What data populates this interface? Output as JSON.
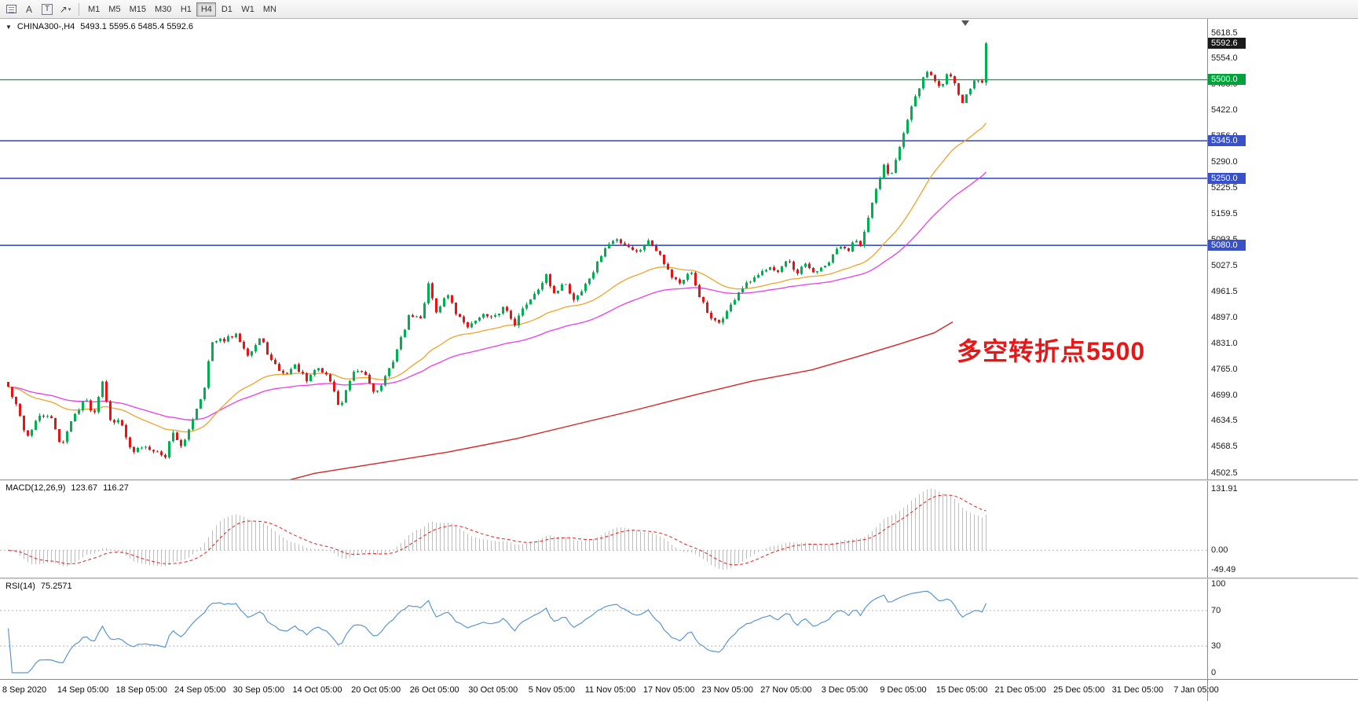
{
  "toolbar": {
    "tools": [
      {
        "label": "A"
      },
      {
        "label": "T"
      },
      {
        "label": "↗"
      }
    ],
    "caret": "▾",
    "timeframes": [
      {
        "label": "M1"
      },
      {
        "label": "M5"
      },
      {
        "label": "M15"
      },
      {
        "label": "M30"
      },
      {
        "label": "H1"
      },
      {
        "label": "H4",
        "active": true
      },
      {
        "label": "D1"
      },
      {
        "label": "W1"
      },
      {
        "label": "MN"
      }
    ]
  },
  "header": {
    "marker": "▼",
    "symbol": "CHINA300-,H4",
    "ohlc": "5493.1 5595.6 5485.4 5592.6"
  },
  "annotation": "多空转折点5500",
  "chart_data": {
    "type": "candlestick",
    "title": "CHINA300-,H4",
    "timeframe": "H4",
    "ohlc_display": {
      "open": "5493.1",
      "high": "5595.6",
      "low": "5485.4",
      "close": "5592.6"
    },
    "last_candle": {
      "o": 5493.1,
      "h": 5595.6,
      "l": 5485.4,
      "c": 5592.6
    },
    "current_price": 5592.6,
    "price_axis": {
      "min": 4502.5,
      "max": 5618.5,
      "labels": [
        5618.5,
        5554.0,
        5488.0,
        5422.0,
        5356.0,
        5290.0,
        5225.5,
        5159.5,
        5093.5,
        5027.5,
        4961.5,
        4897.0,
        4831.0,
        4765.0,
        4699.0,
        4634.5,
        4568.5,
        4502.5
      ]
    },
    "levels": [
      {
        "price": 5500.0,
        "label": "5500.0",
        "color": "#00a239",
        "weight": 1.3,
        "type": "horizontal-line"
      },
      {
        "price": 5345.0,
        "label": "5345.0",
        "color": "#3850c8",
        "weight": 1.6,
        "type": "horizontal-line"
      },
      {
        "price": 5250.0,
        "label": "5250.0",
        "color": "#3850c8",
        "weight": 1.6,
        "type": "horizontal-line"
      },
      {
        "price": 5080.0,
        "label": "5080.0",
        "color": "#3850c8",
        "weight": 1.6,
        "type": "horizontal-line"
      }
    ],
    "time_labels": [
      "8 Sep 2020",
      "14 Sep 05:00",
      "18 Sep 05:00",
      "24 Sep 05:00",
      "30 Sep 05:00",
      "14 Oct 05:00",
      "20 Oct 05:00",
      "26 Oct 05:00",
      "30 Oct 05:00",
      "5 Nov 05:00",
      "11 Nov 05:00",
      "17 Nov 05:00",
      "23 Nov 05:00",
      "27 Nov 05:00",
      "3 Dec 05:00",
      "9 Dec 05:00",
      "15 Dec 05:00",
      "21 Dec 05:00",
      "25 Dec 05:00",
      "31 Dec 05:00",
      "7 Jan 05:00"
    ],
    "candle_count": 250,
    "price_path": [
      [
        0,
        4720
      ],
      [
        0.01,
        4662
      ],
      [
        0.019,
        4592
      ],
      [
        0.03,
        4642
      ],
      [
        0.042,
        4652
      ],
      [
        0.054,
        4572
      ],
      [
        0.066,
        4642
      ],
      [
        0.078,
        4692
      ],
      [
        0.088,
        4652
      ],
      [
        0.096,
        4742
      ],
      [
        0.106,
        4622
      ],
      [
        0.115,
        4642
      ],
      [
        0.126,
        4552
      ],
      [
        0.138,
        4572
      ],
      [
        0.15,
        4562
      ],
      [
        0.16,
        4540
      ],
      [
        0.168,
        4612
      ],
      [
        0.178,
        4562
      ],
      [
        0.19,
        4652
      ],
      [
        0.2,
        4712
      ],
      [
        0.208,
        4832
      ],
      [
        0.222,
        4842
      ],
      [
        0.234,
        4852
      ],
      [
        0.246,
        4802
      ],
      [
        0.258,
        4846
      ],
      [
        0.27,
        4782
      ],
      [
        0.282,
        4752
      ],
      [
        0.294,
        4776
      ],
      [
        0.306,
        4732
      ],
      [
        0.315,
        4772
      ],
      [
        0.328,
        4746
      ],
      [
        0.339,
        4666
      ],
      [
        0.352,
        4752
      ],
      [
        0.363,
        4762
      ],
      [
        0.376,
        4702
      ],
      [
        0.39,
        4766
      ],
      [
        0.402,
        4846
      ],
      [
        0.411,
        4906
      ],
      [
        0.422,
        4892
      ],
      [
        0.43,
        4988
      ],
      [
        0.438,
        4906
      ],
      [
        0.448,
        4962
      ],
      [
        0.459,
        4902
      ],
      [
        0.472,
        4872
      ],
      [
        0.483,
        4906
      ],
      [
        0.496,
        4892
      ],
      [
        0.507,
        4926
      ],
      [
        0.518,
        4882
      ],
      [
        0.528,
        4926
      ],
      [
        0.539,
        4962
      ],
      [
        0.55,
        5002
      ],
      [
        0.558,
        4952
      ],
      [
        0.568,
        4992
      ],
      [
        0.578,
        4942
      ],
      [
        0.587,
        4966
      ],
      [
        0.598,
        5012
      ],
      [
        0.61,
        5072
      ],
      [
        0.621,
        5096
      ],
      [
        0.632,
        5082
      ],
      [
        0.643,
        5062
      ],
      [
        0.654,
        5092
      ],
      [
        0.666,
        5062
      ],
      [
        0.677,
        5006
      ],
      [
        0.688,
        4982
      ],
      [
        0.698,
        5012
      ],
      [
        0.707,
        4952
      ],
      [
        0.718,
        4892
      ],
      [
        0.726,
        4882
      ],
      [
        0.738,
        4922
      ],
      [
        0.747,
        4962
      ],
      [
        0.758,
        4986
      ],
      [
        0.768,
        5002
      ],
      [
        0.778,
        5032
      ],
      [
        0.787,
        5012
      ],
      [
        0.797,
        5042
      ],
      [
        0.806,
        5002
      ],
      [
        0.814,
        5032
      ],
      [
        0.824,
        5012
      ],
      [
        0.834,
        5022
      ],
      [
        0.842,
        5046
      ],
      [
        0.85,
        5082
      ],
      [
        0.858,
        5062
      ],
      [
        0.866,
        5102
      ],
      [
        0.872,
        5082
      ],
      [
        0.88,
        5152
      ],
      [
        0.888,
        5222
      ],
      [
        0.896,
        5286
      ],
      [
        0.902,
        5252
      ],
      [
        0.91,
        5322
      ],
      [
        0.918,
        5386
      ],
      [
        0.925,
        5442
      ],
      [
        0.932,
        5476
      ],
      [
        0.939,
        5526
      ],
      [
        0.946,
        5502
      ],
      [
        0.954,
        5478
      ],
      [
        0.961,
        5522
      ],
      [
        0.968,
        5492
      ],
      [
        0.975,
        5442
      ],
      [
        0.982,
        5472
      ],
      [
        0.989,
        5502
      ],
      [
        0.995,
        5493
      ],
      [
        1,
        5592.6
      ]
    ],
    "ma_slow_path": [
      [
        0.18,
        4428
      ],
      [
        0.25,
        4460
      ],
      [
        0.314,
        4502
      ],
      [
        0.38,
        4528
      ],
      [
        0.45,
        4556
      ],
      [
        0.52,
        4590
      ],
      [
        0.58,
        4626
      ],
      [
        0.64,
        4662
      ],
      [
        0.7,
        4700
      ],
      [
        0.76,
        4736
      ],
      [
        0.82,
        4764
      ],
      [
        0.87,
        4800
      ],
      [
        0.91,
        4830
      ],
      [
        0.945,
        4858
      ],
      [
        0.964,
        4886
      ]
    ],
    "moving_averages": {
      "fast_period": 34,
      "mid_period": 68
    },
    "indicators": {
      "macd": {
        "label": "MACD(12,26,9)",
        "value_main": "123.67",
        "value_signal": "116.27",
        "fast": 12,
        "slow": 26,
        "signal": 9,
        "axis_labels": [
          "131.91",
          "0.00",
          "-49.49"
        ]
      },
      "rsi": {
        "label": "RSI(14)",
        "value": "75.2571",
        "period": 14,
        "axis_labels": [
          "100",
          "70",
          "30",
          "0"
        ],
        "levels": [
          70,
          30
        ]
      }
    },
    "colors": {
      "up": "#00b050",
      "down": "#e51515",
      "ma_fast": "#efa32a",
      "ma_mid": "#e83ee8",
      "ma_slow": "#d42525",
      "macd_hist": "#bdbdbd",
      "macd_signal": "#e02020",
      "rsi_line": "#5a96d2",
      "grid": "#b5b5b5",
      "badge_current_bg": "#1a1a1a",
      "annotation": "#e81717"
    }
  }
}
